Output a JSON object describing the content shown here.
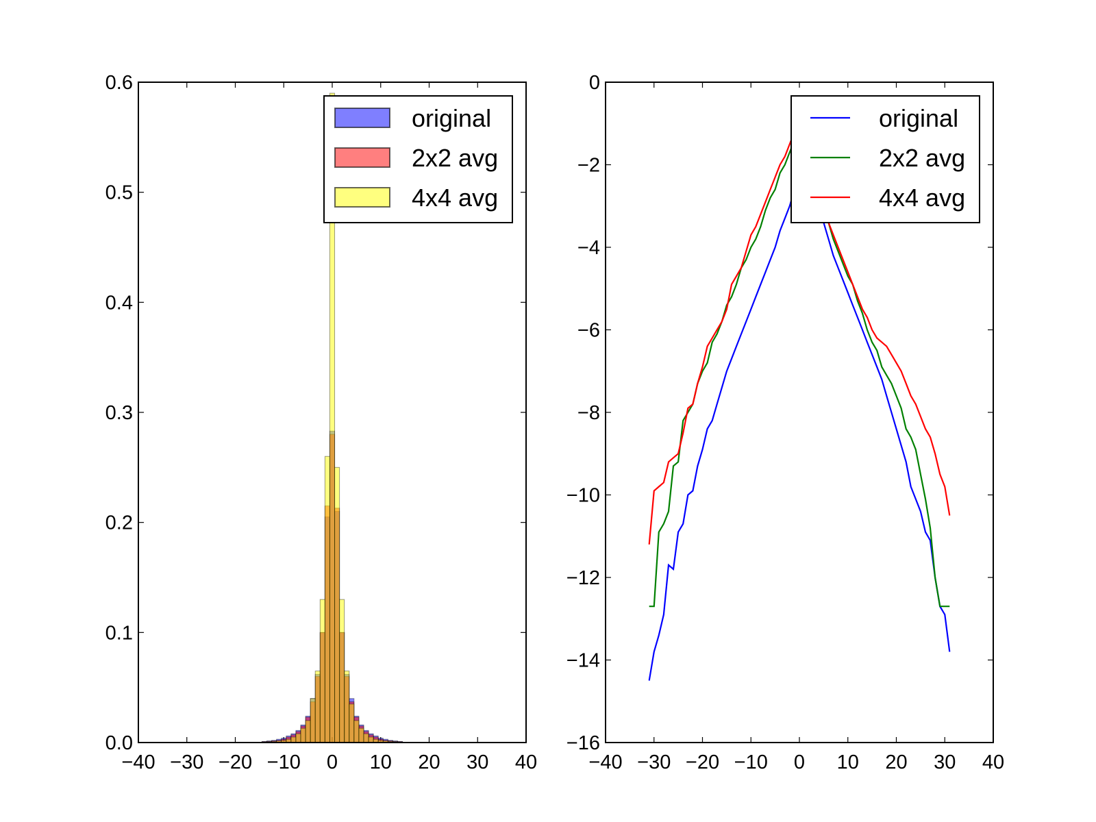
{
  "chart_data": [
    {
      "type": "bar",
      "title": "",
      "xlabel": "",
      "ylabel": "",
      "xlim": [
        -40,
        40
      ],
      "ylim": [
        0,
        0.6
      ],
      "xticks": [
        "−40",
        "−30",
        "−20",
        "−10",
        "0",
        "10",
        "20",
        "30",
        "40"
      ],
      "yticks": [
        "0.0",
        "0.1",
        "0.2",
        "0.3",
        "0.4",
        "0.5",
        "0.6"
      ],
      "grid": false,
      "legend_position": "top-right",
      "bin_width": 1,
      "x": [
        -14,
        -13,
        -12,
        -11,
        -10,
        -9,
        -8,
        -7,
        -6,
        -5,
        -4,
        -3,
        -2,
        -1,
        0,
        1,
        2,
        3,
        4,
        5,
        6,
        7,
        8,
        9,
        10,
        11,
        12,
        13,
        14
      ],
      "series": [
        {
          "name": "original",
          "color": "#0000ff",
          "values": [
            0.001,
            0.0015,
            0.002,
            0.003,
            0.004,
            0.006,
            0.008,
            0.011,
            0.016,
            0.024,
            0.04,
            0.062,
            0.1,
            0.205,
            0.283,
            0.21,
            0.1,
            0.062,
            0.04,
            0.024,
            0.016,
            0.011,
            0.008,
            0.006,
            0.004,
            0.003,
            0.002,
            0.0015,
            0.001
          ]
        },
        {
          "name": "2x2 avg",
          "color": "#ff0000",
          "values": [
            0.0008,
            0.001,
            0.0015,
            0.002,
            0.003,
            0.005,
            0.007,
            0.01,
            0.015,
            0.023,
            0.037,
            0.06,
            0.1,
            0.215,
            0.28,
            0.213,
            0.1,
            0.06,
            0.037,
            0.023,
            0.015,
            0.01,
            0.007,
            0.005,
            0.003,
            0.002,
            0.0015,
            0.001,
            0.0008
          ]
        },
        {
          "name": "4x4 avg",
          "color": "#ffff00",
          "values": [
            0.0005,
            0.0008,
            0.001,
            0.0015,
            0.002,
            0.003,
            0.005,
            0.008,
            0.013,
            0.02,
            0.04,
            0.065,
            0.13,
            0.26,
            0.59,
            0.25,
            0.13,
            0.065,
            0.035,
            0.02,
            0.013,
            0.008,
            0.005,
            0.003,
            0.002,
            0.0015,
            0.001,
            0.0008,
            0.0005
          ]
        }
      ]
    },
    {
      "type": "line",
      "title": "",
      "xlabel": "",
      "ylabel": "",
      "xlim": [
        -40,
        40
      ],
      "ylim": [
        -16,
        0
      ],
      "xticks": [
        "−40",
        "−30",
        "−20",
        "−10",
        "0",
        "10",
        "20",
        "30",
        "40"
      ],
      "yticks": [
        "0",
        "−2",
        "−4",
        "−6",
        "−8",
        "−10",
        "−12",
        "−14",
        "−16"
      ],
      "grid": false,
      "legend_position": "top-right",
      "series": [
        {
          "name": "original",
          "color": "#0000ff",
          "x": [
            -31,
            -30,
            -29,
            -28,
            -27,
            -26,
            -25,
            -24,
            -23,
            -22,
            -21,
            -20,
            -19,
            -18,
            -17,
            -16,
            -15,
            -14,
            -13,
            -12,
            -11,
            -10,
            -9,
            -8,
            -7,
            -6,
            -5,
            -4,
            -3,
            -2,
            -1,
            0,
            1,
            2,
            3,
            4,
            5,
            6,
            7,
            8,
            9,
            10,
            11,
            12,
            13,
            14,
            15,
            16,
            17,
            18,
            19,
            20,
            21,
            22,
            23,
            24,
            25,
            26,
            27,
            28,
            29,
            30,
            31
          ],
          "y": [
            -14.5,
            -13.8,
            -13.4,
            -12.9,
            -11.7,
            -11.8,
            -10.9,
            -10.7,
            -10.0,
            -9.9,
            -9.3,
            -8.9,
            -8.4,
            -8.2,
            -7.8,
            -7.4,
            -7.0,
            -6.7,
            -6.4,
            -6.1,
            -5.8,
            -5.5,
            -5.2,
            -4.9,
            -4.6,
            -4.3,
            -4.0,
            -3.6,
            -3.3,
            -3.0,
            -2.6,
            -2.2,
            -1.8,
            -2.2,
            -2.6,
            -3.0,
            -3.4,
            -3.8,
            -4.2,
            -4.5,
            -4.8,
            -5.1,
            -5.4,
            -5.7,
            -6.0,
            -6.3,
            -6.6,
            -6.9,
            -7.2,
            -7.6,
            -8.0,
            -8.4,
            -8.8,
            -9.2,
            -9.8,
            -10.1,
            -10.4,
            -10.9,
            -11.1,
            -12.0,
            -12.7,
            -12.9,
            -13.8
          ]
        },
        {
          "name": "2x2 avg",
          "color": "#008000",
          "x": [
            -31,
            -30,
            -29,
            -28,
            -27,
            -26,
            -25,
            -24,
            -23,
            -22,
            -21,
            -20,
            -19,
            -18,
            -17,
            -16,
            -15,
            -14,
            -13,
            -12,
            -11,
            -10,
            -9,
            -8,
            -7,
            -6,
            -5,
            -4,
            -3,
            -2,
            -1,
            0,
            1,
            2,
            3,
            4,
            5,
            6,
            7,
            8,
            9,
            10,
            11,
            12,
            13,
            14,
            15,
            16,
            17,
            18,
            19,
            20,
            21,
            22,
            23,
            24,
            25,
            26,
            27,
            28,
            29,
            30,
            31
          ],
          "y": [
            -12.7,
            -12.7,
            -10.9,
            -10.7,
            -10.4,
            -9.3,
            -9.2,
            -8.2,
            -8.0,
            -7.8,
            -7.3,
            -7.0,
            -6.8,
            -6.3,
            -6.1,
            -5.8,
            -5.4,
            -5.2,
            -4.9,
            -4.5,
            -4.3,
            -4.0,
            -3.8,
            -3.5,
            -3.1,
            -2.8,
            -2.6,
            -2.2,
            -2.0,
            -1.7,
            -1.4,
            -1.2,
            -1.5,
            -1.8,
            -2.2,
            -2.6,
            -3.0,
            -3.4,
            -3.8,
            -4.1,
            -4.4,
            -4.7,
            -4.9,
            -5.3,
            -5.6,
            -6.0,
            -6.3,
            -6.5,
            -6.9,
            -7.1,
            -7.3,
            -7.6,
            -7.9,
            -8.4,
            -8.6,
            -8.9,
            -9.5,
            -10.1,
            -10.8,
            -12.0,
            -12.7,
            -12.7,
            -12.7
          ]
        },
        {
          "name": "4x4 avg",
          "color": "#ff0000",
          "x": [
            -31,
            -30,
            -29,
            -28,
            -27,
            -26,
            -25,
            -24,
            -23,
            -22,
            -21,
            -20,
            -19,
            -18,
            -17,
            -16,
            -15,
            -14,
            -13,
            -12,
            -11,
            -10,
            -9,
            -8,
            -7,
            -6,
            -5,
            -4,
            -3,
            -2,
            -1,
            0,
            1,
            2,
            3,
            4,
            5,
            6,
            7,
            8,
            9,
            10,
            11,
            12,
            13,
            14,
            15,
            16,
            17,
            18,
            19,
            20,
            21,
            22,
            23,
            24,
            25,
            26,
            27,
            28,
            29,
            30,
            31
          ],
          "y": [
            -11.2,
            -9.9,
            -9.8,
            -9.7,
            -9.2,
            -9.1,
            -9.0,
            -8.5,
            -7.9,
            -7.8,
            -7.3,
            -6.9,
            -6.4,
            -6.2,
            -6.0,
            -5.8,
            -5.5,
            -4.9,
            -4.7,
            -4.5,
            -4.1,
            -3.7,
            -3.5,
            -3.2,
            -2.9,
            -2.6,
            -2.3,
            -2.0,
            -1.8,
            -1.5,
            -1.2,
            -1.0,
            -1.4,
            -1.8,
            -2.3,
            -2.7,
            -3.0,
            -3.4,
            -3.7,
            -4.0,
            -4.3,
            -4.6,
            -4.9,
            -5.2,
            -5.5,
            -5.7,
            -6.0,
            -6.2,
            -6.3,
            -6.4,
            -6.6,
            -6.8,
            -7.0,
            -7.3,
            -7.6,
            -7.8,
            -8.1,
            -8.4,
            -8.6,
            -9.0,
            -9.5,
            -9.8,
            -10.5
          ]
        }
      ]
    }
  ]
}
